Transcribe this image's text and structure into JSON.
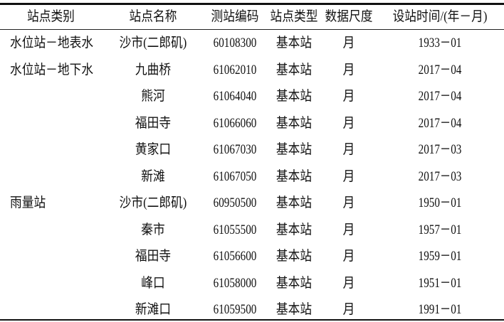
{
  "table": {
    "headers": [
      "站点类别",
      "站点名称",
      "测站编码",
      "站点类型",
      "数据尺度",
      "设站时间/(年－月)"
    ],
    "rows": [
      [
        "水位站－地表水",
        "沙市(二郎矶)",
        "60108300",
        "基本站",
        "月",
        "1933－01"
      ],
      [
        "水位站－地下水",
        "九曲桥",
        "61062010",
        "基本站",
        "月",
        "2017－04"
      ],
      [
        "",
        "熊河",
        "61064040",
        "基本站",
        "月",
        "2017－04"
      ],
      [
        "",
        "福田寺",
        "61066060",
        "基本站",
        "月",
        "2017－04"
      ],
      [
        "",
        "黄家口",
        "61067030",
        "基本站",
        "月",
        "2017－03"
      ],
      [
        "",
        "新滩",
        "61067050",
        "基本站",
        "月",
        "2017－03"
      ],
      [
        "雨量站",
        "沙市(二郎矶)",
        "60950500",
        "基本站",
        "月",
        "1950－01"
      ],
      [
        "",
        "秦市",
        "61055500",
        "基本站",
        "月",
        "1957－01"
      ],
      [
        "",
        "福田寺",
        "61056600",
        "基本站",
        "月",
        "1959－01"
      ],
      [
        "",
        "峰口",
        "61058000",
        "基本站",
        "月",
        "1951－01"
      ],
      [
        "",
        "新滩口",
        "61059500",
        "基本站",
        "月",
        "1991－01"
      ]
    ]
  }
}
